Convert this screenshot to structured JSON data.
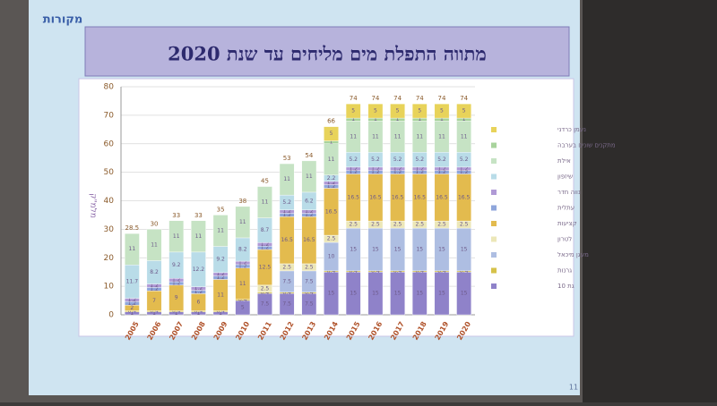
{
  "logo": "מקורות",
  "slide_number": "11",
  "chart_data": {
    "type": "stacked-bar",
    "title": "מתווה התפלת מים מליחים עד שנת 2020",
    "y_label": "מלמ\"ק",
    "categories": [
      "2005",
      "2006",
      "2007",
      "2008",
      "2009",
      "2010",
      "2011",
      "2012",
      "2013",
      "2014",
      "2015",
      "2016",
      "2017",
      "2018",
      "2019",
      "2020"
    ],
    "ylim": [
      0,
      80
    ],
    "yticks": [
      0,
      10,
      20,
      30,
      40,
      50,
      60,
      70,
      80
    ],
    "grid": true,
    "totals": [
      28.5,
      30,
      33,
      33,
      35,
      38,
      45,
      53,
      54,
      66,
      74,
      74,
      74,
      74,
      74,
      74
    ],
    "series": [
      {
        "name": "גת 10",
        "color": "#8f82c9",
        "values": [
          1,
          1,
          1,
          1,
          1,
          5,
          7.5,
          7.5,
          7.5,
          15,
          15,
          15,
          15,
          15,
          15,
          15
        ]
      },
      {
        "name": "גרנות",
        "color": "#d6c24a",
        "values": [
          0.4,
          0.4,
          0.4,
          0.4,
          0.4,
          0.4,
          0.4,
          0.4,
          0.4,
          0.4,
          0.4,
          0.4,
          0.4,
          0.4,
          0.4,
          0.4
        ]
      },
      {
        "name": "מעגן מיכאל",
        "color": "#aebee2",
        "values": [
          null,
          null,
          null,
          null,
          null,
          null,
          null,
          7.5,
          7.5,
          10,
          15,
          15,
          15,
          15,
          15,
          15
        ]
      },
      {
        "name": "לטרון",
        "color": "#ece7b8",
        "values": [
          null,
          null,
          null,
          null,
          null,
          null,
          2.5,
          2.5,
          2.5,
          2.5,
          2.5,
          2.5,
          2.5,
          2.5,
          2.5,
          2.5
        ]
      },
      {
        "name": "קציעות",
        "color": "#e3bb4e",
        "values": [
          2,
          7,
          9,
          6,
          11,
          11,
          12.5,
          16.5,
          16.5,
          16.5,
          16.5,
          16.5,
          16.5,
          16.5,
          16.5,
          16.5
        ]
      },
      {
        "name": "עתלית",
        "color": "#8fa6db",
        "values": [
          1.2,
          1.2,
          1.2,
          1.2,
          1.2,
          1.2,
          1.2,
          1.2,
          1.2,
          1.2,
          1.2,
          1.2,
          1.2,
          1.2,
          1.2,
          1.2
        ]
      },
      {
        "name": "נווה חדר",
        "color": "#b09ad6",
        "values": [
          1.2,
          1.2,
          1.2,
          1.2,
          1.2,
          1.2,
          1.2,
          1.2,
          1.2,
          1.2,
          1.2,
          1.2,
          1.2,
          1.2,
          1.2,
          1.2
        ]
      },
      {
        "name": "שיזפון",
        "color": "#b9dce8",
        "values": [
          11.7,
          8.2,
          9.2,
          12.2,
          9.2,
          8.2,
          8.7,
          5.2,
          6.2,
          2.2,
          5.2,
          5.2,
          5.2,
          5.2,
          5.2,
          5.2
        ]
      },
      {
        "name": "אילת",
        "color": "#c6e3c4",
        "values": [
          11,
          11,
          11,
          11,
          11,
          11,
          11,
          11,
          11,
          11,
          11,
          11,
          11,
          11,
          11,
          11
        ]
      },
      {
        "name": "מתקנים שונים בערבה",
        "color": "#a8d39c",
        "values": [
          null,
          null,
          null,
          null,
          null,
          null,
          null,
          null,
          null,
          1,
          1,
          1,
          1,
          1,
          1,
          1
        ]
      },
      {
        "name": "נעמן כרדני",
        "color": "#e8d35a",
        "values": [
          null,
          null,
          null,
          null,
          null,
          null,
          null,
          null,
          null,
          5,
          5,
          5,
          5,
          5,
          5,
          5
        ]
      }
    ]
  }
}
